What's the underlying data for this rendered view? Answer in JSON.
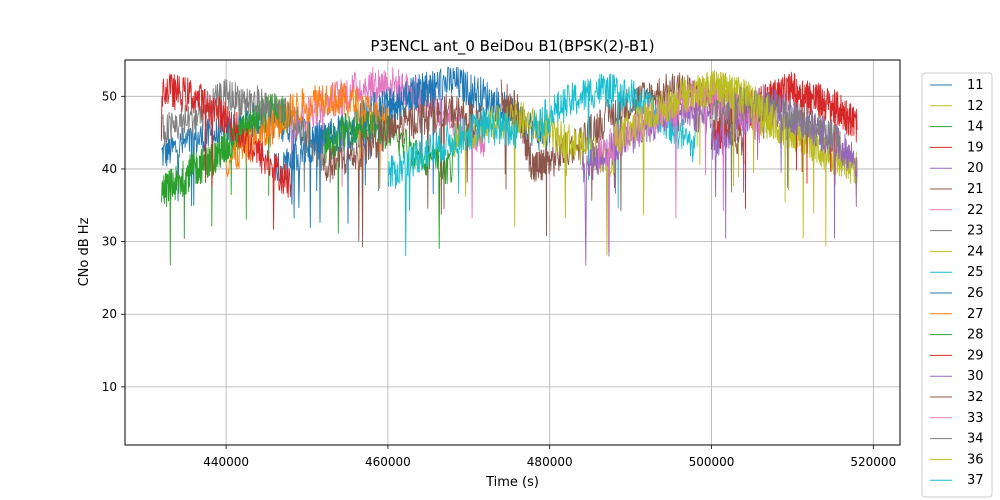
{
  "chart_data": {
    "type": "line",
    "title": "P3ENCL ant_0 BeiDou B1(BPSK(2)-B1)",
    "xlabel": "Time (s)",
    "ylabel": "CNo dB Hz",
    "xlim": [
      427500,
      523300
    ],
    "ylim": [
      2.0,
      55.0
    ],
    "xticks": [
      440000,
      460000,
      480000,
      500000,
      520000
    ],
    "yticks": [
      10,
      20,
      30,
      40,
      50
    ],
    "grid": true,
    "legend_position": "right-outside",
    "series": [
      {
        "name": "11",
        "color": "#1f77b4",
        "x": [
          432000,
          436000,
          440000,
          444000,
          448000,
          452000,
          456000,
          460000,
          464000,
          468000,
          472000,
          476000,
          480000
        ],
        "y": [
          42,
          44,
          45,
          47,
          46,
          44,
          45,
          48,
          51,
          52,
          50,
          47,
          44
        ]
      },
      {
        "name": "12",
        "color": "#bcbd22",
        "x": [
          498000,
          500000,
          502000,
          504000,
          506000,
          508000,
          510000,
          512000,
          514000,
          516000,
          518000
        ],
        "y": [
          50,
          51,
          51,
          49,
          47,
          46,
          45,
          44,
          42,
          41,
          40
        ]
      },
      {
        "name": "14",
        "color": "#2ca02c",
        "x": [
          432000,
          434000,
          436000,
          438000,
          440000,
          442000,
          444000,
          446000,
          448000
        ],
        "y": [
          37,
          38,
          40,
          41,
          43,
          45,
          47,
          48,
          47
        ]
      },
      {
        "name": "19",
        "color": "#d62728",
        "x": [
          500000,
          502000,
          504000,
          506000,
          508000,
          510000,
          512000,
          514000,
          516000,
          518000
        ],
        "y": [
          44,
          46,
          48,
          49,
          50,
          51,
          50,
          49,
          48,
          46
        ]
      },
      {
        "name": "20",
        "color": "#9467bd",
        "x": [
          500000,
          503000,
          506000,
          509000,
          512000,
          515000,
          518000
        ],
        "y": [
          43,
          46,
          49,
          48,
          46,
          44,
          41
        ]
      },
      {
        "name": "21",
        "color": "#8c564b",
        "x": [
          474000,
          476000,
          478000,
          480000,
          484000,
          488000,
          492000,
          496000,
          500000,
          504000
        ],
        "y": [
          50,
          48,
          40,
          41,
          44,
          48,
          50,
          51,
          49,
          43
        ]
      },
      {
        "name": "22",
        "color": "#e377c2",
        "x": [
          448000,
          452000,
          456000,
          460000,
          464000,
          468000,
          472000
        ],
        "y": [
          46,
          49,
          51,
          52,
          50,
          47,
          43
        ]
      },
      {
        "name": "23",
        "color": "#7f7f7f",
        "x": [
          432000,
          436000,
          440000,
          444000,
          448000,
          452000
        ],
        "y": [
          45,
          47,
          50,
          49,
          47,
          42
        ]
      },
      {
        "name": "24",
        "color": "#bcbd22",
        "x": [
          468000,
          472000,
          476000,
          480000,
          484000,
          488000
        ],
        "y": [
          44,
          46,
          47,
          45,
          43,
          41
        ]
      },
      {
        "name": "25",
        "color": "#17becf",
        "x": [
          478000,
          482000,
          486000,
          490000,
          494000,
          498000
        ],
        "y": [
          46,
          49,
          51,
          50,
          47,
          43
        ]
      },
      {
        "name": "26",
        "color": "#1f77b4",
        "x": [
          446000,
          450000,
          454000,
          458000,
          462000,
          466000
        ],
        "y": [
          40,
          43,
          45,
          48,
          50,
          51
        ]
      },
      {
        "name": "27",
        "color": "#ff7f0e",
        "x": [
          440000,
          444000,
          448000,
          452000,
          456000,
          460000
        ],
        "y": [
          41,
          44,
          48,
          50,
          49,
          46
        ]
      },
      {
        "name": "28",
        "color": "#2ca02c",
        "x": [
          452000,
          456000,
          460000,
          464000,
          468000
        ],
        "y": [
          43,
          46,
          45,
          42,
          40
        ]
      },
      {
        "name": "29",
        "color": "#d62728",
        "x": [
          432000,
          436000,
          440000,
          444000,
          448000
        ],
        "y": [
          51,
          50,
          47,
          42,
          38
        ]
      },
      {
        "name": "30",
        "color": "#9467bd",
        "x": [
          484000,
          488000,
          492000,
          496000,
          500000
        ],
        "y": [
          40,
          43,
          46,
          48,
          47
        ]
      },
      {
        "name": "32",
        "color": "#8c564b",
        "x": [
          452000,
          456000,
          460000,
          464000,
          468000,
          472000
        ],
        "y": [
          40,
          42,
          45,
          47,
          48,
          46
        ]
      },
      {
        "name": "33",
        "color": "#e377c2",
        "x": [
          486000,
          490000,
          494000,
          498000,
          502000,
          506000
        ],
        "y": [
          42,
          45,
          48,
          50,
          49,
          46
        ]
      },
      {
        "name": "34",
        "color": "#7f7f7f",
        "x": [
          500000,
          504000,
          508000,
          512000,
          516000
        ],
        "y": [
          47,
          49,
          48,
          46,
          44
        ]
      },
      {
        "name": "36",
        "color": "#bcbd22",
        "x": [
          488000,
          492000,
          496000,
          500000,
          504000,
          508000
        ],
        "y": [
          44,
          47,
          50,
          51,
          50,
          47
        ]
      },
      {
        "name": "37",
        "color": "#17becf",
        "x": [
          460000,
          464000,
          468000,
          472000,
          476000
        ],
        "y": [
          39,
          42,
          44,
          46,
          45
        ]
      }
    ]
  }
}
